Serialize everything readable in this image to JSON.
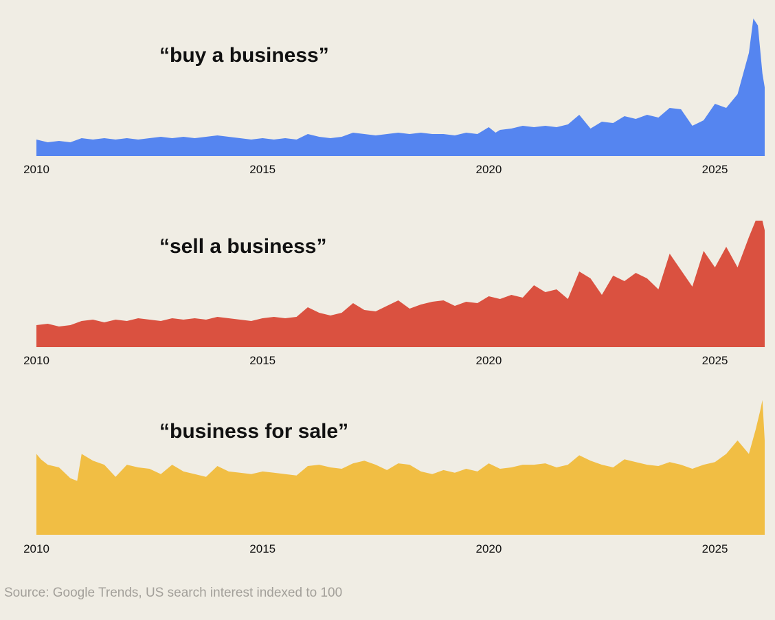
{
  "source_note": "Source: Google Trends, US search interest indexed to 100",
  "chart_data": [
    {
      "type": "area",
      "title": "“buy a business”",
      "color": "#5585f0",
      "xlim": [
        2010.0,
        2026.1
      ],
      "ylim": [
        0,
        100
      ],
      "xticks": [
        2010,
        2015,
        2020,
        2025
      ],
      "x": [
        2010.0,
        2010.25,
        2010.5,
        2010.75,
        2011.0,
        2011.25,
        2011.5,
        2011.75,
        2012.0,
        2012.25,
        2012.5,
        2012.75,
        2013.0,
        2013.25,
        2013.5,
        2013.75,
        2014.0,
        2014.25,
        2014.5,
        2014.75,
        2015.0,
        2015.25,
        2015.5,
        2015.75,
        2016.0,
        2016.25,
        2016.5,
        2016.75,
        2017.0,
        2017.25,
        2017.5,
        2017.75,
        2018.0,
        2018.25,
        2018.5,
        2018.75,
        2019.0,
        2019.25,
        2019.5,
        2019.75,
        2020.0,
        2020.15,
        2020.25,
        2020.5,
        2020.75,
        2021.0,
        2021.25,
        2021.5,
        2021.75,
        2022.0,
        2022.25,
        2022.5,
        2022.75,
        2023.0,
        2023.25,
        2023.5,
        2023.75,
        2024.0,
        2024.25,
        2024.5,
        2024.75,
        2025.0,
        2025.25,
        2025.5,
        2025.6,
        2025.75,
        2025.85,
        2025.95,
        2026.05,
        2026.1
      ],
      "y": [
        12,
        10,
        11,
        10,
        13,
        12,
        13,
        12,
        13,
        12,
        13,
        14,
        13,
        14,
        13,
        14,
        15,
        14,
        13,
        12,
        13,
        12,
        13,
        12,
        16,
        14,
        13,
        14,
        17,
        16,
        15,
        16,
        17,
        16,
        17,
        16,
        16,
        15,
        17,
        16,
        21,
        17,
        19,
        20,
        22,
        21,
        22,
        21,
        23,
        30,
        20,
        25,
        24,
        29,
        27,
        30,
        28,
        35,
        34,
        22,
        26,
        38,
        35,
        45,
        57,
        75,
        100,
        95,
        60,
        50
      ],
      "values_note": "Estimated from graphic"
    },
    {
      "type": "area",
      "title": "“sell a business”",
      "color": "#da5140",
      "xlim": [
        2010.0,
        2026.1
      ],
      "ylim": [
        0,
        100
      ],
      "xticks": [
        2010,
        2015,
        2020,
        2025
      ],
      "x": [
        2010.0,
        2010.25,
        2010.5,
        2010.75,
        2011.0,
        2011.25,
        2011.5,
        2011.75,
        2012.0,
        2012.25,
        2012.5,
        2012.75,
        2013.0,
        2013.25,
        2013.5,
        2013.75,
        2014.0,
        2014.25,
        2014.5,
        2014.75,
        2015.0,
        2015.25,
        2015.5,
        2015.75,
        2016.0,
        2016.25,
        2016.5,
        2016.75,
        2017.0,
        2017.25,
        2017.5,
        2017.75,
        2018.0,
        2018.25,
        2018.5,
        2018.75,
        2019.0,
        2019.25,
        2019.5,
        2019.75,
        2020.0,
        2020.25,
        2020.5,
        2020.75,
        2021.0,
        2021.25,
        2021.5,
        2021.75,
        2022.0,
        2022.25,
        2022.5,
        2022.75,
        2023.0,
        2023.25,
        2023.5,
        2023.75,
        2024.0,
        2024.25,
        2024.5,
        2024.75,
        2025.0,
        2025.25,
        2025.5,
        2025.75,
        2025.9,
        2026.05,
        2026.1
      ],
      "y": [
        16,
        17,
        15,
        16,
        19,
        20,
        18,
        20,
        19,
        21,
        20,
        19,
        21,
        20,
        21,
        20,
        22,
        21,
        20,
        19,
        21,
        22,
        21,
        22,
        29,
        25,
        23,
        25,
        32,
        27,
        26,
        30,
        34,
        28,
        31,
        33,
        34,
        30,
        33,
        32,
        37,
        35,
        38,
        36,
        45,
        40,
        42,
        35,
        55,
        50,
        38,
        52,
        48,
        54,
        50,
        42,
        68,
        56,
        44,
        70,
        58,
        73,
        58,
        80,
        92,
        92,
        85
      ]
    },
    {
      "type": "area",
      "title": "“business for sale”",
      "color": "#f1be44",
      "xlim": [
        2010.0,
        2026.1
      ],
      "ylim": [
        0,
        100
      ],
      "xticks": [
        2010,
        2015,
        2020,
        2025
      ],
      "x": [
        2010.0,
        2010.1,
        2010.25,
        2010.5,
        2010.75,
        2010.9,
        2011.0,
        2011.25,
        2011.5,
        2011.75,
        2012.0,
        2012.25,
        2012.5,
        2012.75,
        2013.0,
        2013.25,
        2013.5,
        2013.75,
        2014.0,
        2014.25,
        2014.5,
        2014.75,
        2015.0,
        2015.25,
        2015.5,
        2015.75,
        2016.0,
        2016.25,
        2016.5,
        2016.75,
        2017.0,
        2017.25,
        2017.5,
        2017.75,
        2018.0,
        2018.25,
        2018.5,
        2018.75,
        2019.0,
        2019.25,
        2019.5,
        2019.75,
        2020.0,
        2020.25,
        2020.5,
        2020.75,
        2021.0,
        2021.25,
        2021.5,
        2021.75,
        2022.0,
        2022.25,
        2022.5,
        2022.75,
        2023.0,
        2023.25,
        2023.5,
        2023.75,
        2024.0,
        2024.25,
        2024.5,
        2024.75,
        2025.0,
        2025.25,
        2025.5,
        2025.75,
        2025.9,
        2026.0,
        2026.05,
        2026.1
      ],
      "y": [
        60,
        56,
        52,
        50,
        42,
        40,
        60,
        55,
        52,
        43,
        52,
        50,
        49,
        45,
        52,
        47,
        45,
        43,
        51,
        47,
        46,
        45,
        47,
        46,
        45,
        44,
        51,
        52,
        50,
        49,
        53,
        55,
        52,
        48,
        53,
        52,
        47,
        45,
        48,
        46,
        49,
        47,
        53,
        49,
        50,
        52,
        52,
        53,
        50,
        52,
        59,
        55,
        52,
        50,
        56,
        54,
        52,
        51,
        54,
        52,
        49,
        52,
        54,
        60,
        70,
        60,
        78,
        92,
        100,
        70
      ]
    }
  ]
}
